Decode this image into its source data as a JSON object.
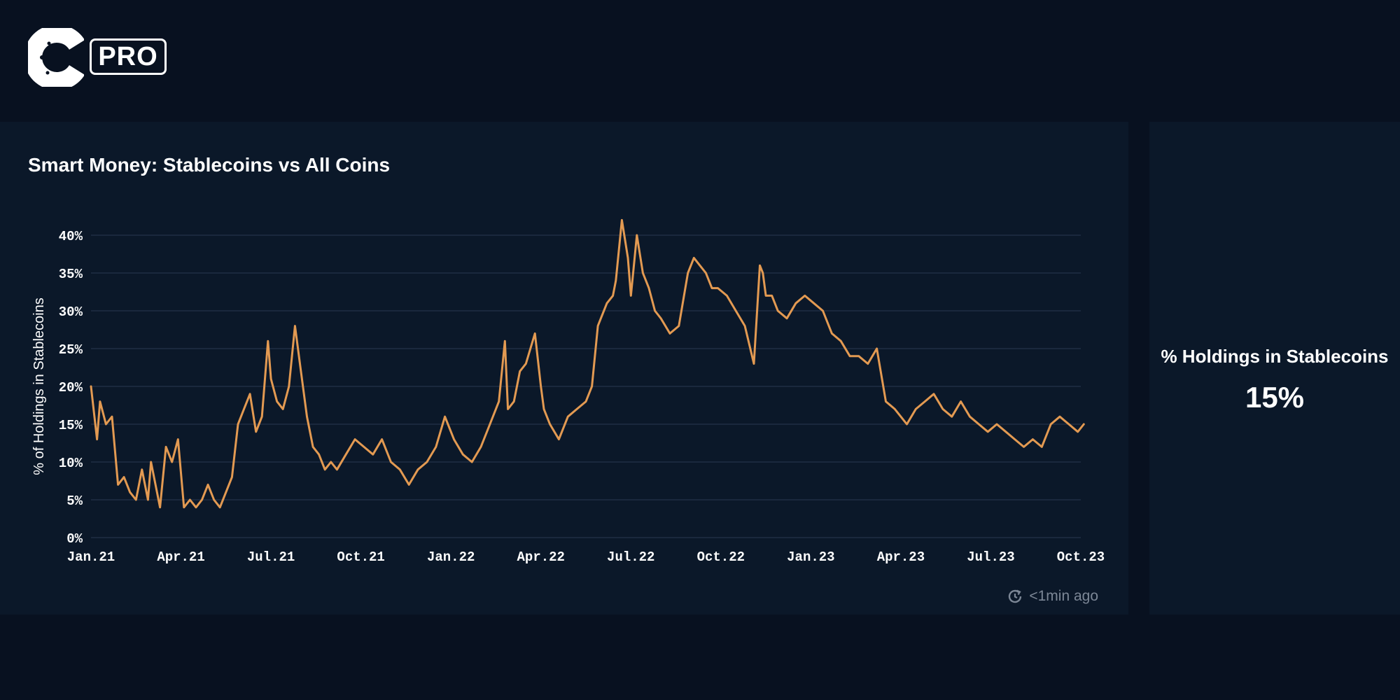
{
  "header": {
    "logo_letter": "C",
    "badge": "PRO"
  },
  "colors": {
    "background": "#081120",
    "card": "#0b1829",
    "line": "#e39a52",
    "grid": "#1f2e44",
    "tick_text": "#ffffff",
    "muted": "#7c8796"
  },
  "chart_card": {
    "title": "Smart Money: Stablecoins vs All Coins",
    "updated": "<1min ago",
    "updated_icon": "refresh-clock-icon"
  },
  "stat_card": {
    "label": "% Holdings in Stablecoins",
    "value": "15%"
  },
  "chart_data": {
    "type": "line",
    "title": "Smart Money: Stablecoins vs All Coins",
    "xlabel": "",
    "ylabel": "% of Holdings in Stablecoins",
    "ylim": [
      0,
      40
    ],
    "yticks": [
      0,
      5,
      10,
      15,
      20,
      25,
      30,
      35,
      40
    ],
    "ytick_labels": [
      "0%",
      "5%",
      "10%",
      "15%",
      "20%",
      "25%",
      "30%",
      "35%",
      "40%"
    ],
    "xlim": [
      0,
      33
    ],
    "xticks": [
      0,
      3,
      6,
      9,
      12,
      15,
      18,
      21,
      24,
      27,
      30,
      33
    ],
    "xtick_labels": [
      "Jan.21",
      "Apr.21",
      "Jul.21",
      "Oct.21",
      "Jan.22",
      "Apr.22",
      "Jul.22",
      "Oct.22",
      "Jan.23",
      "Apr.23",
      "Jul.23",
      "Oct.23"
    ],
    "grid": true,
    "legend": "none",
    "series": [
      {
        "name": "% Holdings in Stablecoins",
        "x_unit": "months since Jan 2021",
        "x": [
          0,
          0.2,
          0.3,
          0.5,
          0.7,
          0.9,
          1.1,
          1.3,
          1.5,
          1.7,
          1.9,
          2.0,
          2.2,
          2.3,
          2.5,
          2.7,
          2.9,
          3.1,
          3.3,
          3.5,
          3.7,
          3.9,
          4.1,
          4.3,
          4.5,
          4.7,
          4.9,
          5.1,
          5.3,
          5.5,
          5.7,
          5.9,
          6.0,
          6.2,
          6.4,
          6.6,
          6.8,
          7.0,
          7.2,
          7.4,
          7.6,
          7.8,
          8.0,
          8.2,
          8.5,
          8.8,
          9.1,
          9.4,
          9.7,
          10.0,
          10.3,
          10.6,
          10.9,
          11.2,
          11.5,
          11.8,
          12.1,
          12.4,
          12.7,
          13.0,
          13.3,
          13.6,
          13.8,
          13.9,
          14.1,
          14.3,
          14.5,
          14.8,
          15.0,
          15.1,
          15.3,
          15.6,
          15.9,
          16.2,
          16.5,
          16.7,
          16.9,
          17.2,
          17.4,
          17.5,
          17.7,
          17.9,
          18.0,
          18.2,
          18.4,
          18.6,
          18.8,
          19.0,
          19.3,
          19.6,
          19.9,
          20.1,
          20.3,
          20.5,
          20.7,
          20.9,
          21.2,
          21.5,
          21.8,
          22.1,
          22.3,
          22.4,
          22.5,
          22.7,
          22.9,
          23.2,
          23.5,
          23.8,
          24.1,
          24.4,
          24.7,
          25.0,
          25.3,
          25.6,
          25.9,
          26.2,
          26.5,
          26.8,
          27.0,
          27.2,
          27.5,
          27.8,
          28.1,
          28.4,
          28.7,
          29.0,
          29.3,
          29.6,
          29.9,
          30.2,
          30.5,
          30.8,
          31.1,
          31.4,
          31.7,
          32.0,
          32.3,
          32.6,
          32.9,
          33.1
        ],
        "values": [
          20,
          13,
          18,
          15,
          16,
          7,
          8,
          6,
          5,
          9,
          5,
          10,
          6,
          4,
          12,
          10,
          13,
          4,
          5,
          4,
          5,
          7,
          5,
          4,
          6,
          8,
          15,
          17,
          19,
          14,
          16,
          26,
          21,
          18,
          17,
          20,
          28,
          22,
          16,
          12,
          11,
          9,
          10,
          9,
          11,
          13,
          12,
          11,
          13,
          10,
          9,
          7,
          9,
          10,
          12,
          16,
          13,
          11,
          10,
          12,
          15,
          18,
          26,
          17,
          18,
          22,
          23,
          27,
          20,
          17,
          15,
          13,
          16,
          17,
          18,
          20,
          28,
          31,
          32,
          34,
          42,
          37,
          32,
          40,
          35,
          33,
          30,
          29,
          27,
          28,
          35,
          37,
          36,
          35,
          33,
          33,
          32,
          30,
          28,
          23,
          36,
          35,
          32,
          32,
          30,
          29,
          31,
          32,
          31,
          30,
          27,
          26,
          24,
          24,
          23,
          25,
          18,
          17,
          16,
          15,
          17,
          18,
          19,
          17,
          16,
          18,
          16,
          15,
          14,
          15,
          14,
          13,
          12,
          13,
          12,
          15,
          16,
          15,
          14,
          15
        ]
      }
    ]
  }
}
